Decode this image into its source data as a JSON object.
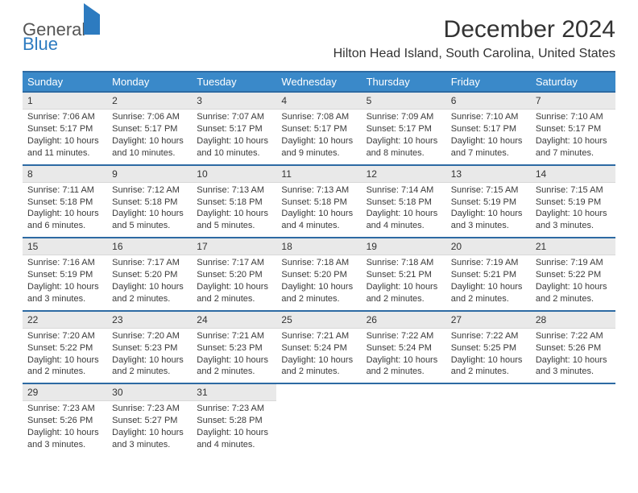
{
  "logo": {
    "word1": "General",
    "word2": "Blue"
  },
  "title": "December 2024",
  "subtitle": "Hilton Head Island, South Carolina, United States",
  "colors": {
    "header_bg": "#3a89c9",
    "header_border": "#2d6aa3",
    "daynum_bg": "#e9e9e9",
    "text": "#3a3a3a",
    "logo_blue": "#2d7bc0"
  },
  "day_headers": [
    "Sunday",
    "Monday",
    "Tuesday",
    "Wednesday",
    "Thursday",
    "Friday",
    "Saturday"
  ],
  "weeks": [
    [
      {
        "n": "1",
        "sr": "Sunrise: 7:06 AM",
        "ss": "Sunset: 5:17 PM",
        "dl": "Daylight: 10 hours and 11 minutes."
      },
      {
        "n": "2",
        "sr": "Sunrise: 7:06 AM",
        "ss": "Sunset: 5:17 PM",
        "dl": "Daylight: 10 hours and 10 minutes."
      },
      {
        "n": "3",
        "sr": "Sunrise: 7:07 AM",
        "ss": "Sunset: 5:17 PM",
        "dl": "Daylight: 10 hours and 10 minutes."
      },
      {
        "n": "4",
        "sr": "Sunrise: 7:08 AM",
        "ss": "Sunset: 5:17 PM",
        "dl": "Daylight: 10 hours and 9 minutes."
      },
      {
        "n": "5",
        "sr": "Sunrise: 7:09 AM",
        "ss": "Sunset: 5:17 PM",
        "dl": "Daylight: 10 hours and 8 minutes."
      },
      {
        "n": "6",
        "sr": "Sunrise: 7:10 AM",
        "ss": "Sunset: 5:17 PM",
        "dl": "Daylight: 10 hours and 7 minutes."
      },
      {
        "n": "7",
        "sr": "Sunrise: 7:10 AM",
        "ss": "Sunset: 5:17 PM",
        "dl": "Daylight: 10 hours and 7 minutes."
      }
    ],
    [
      {
        "n": "8",
        "sr": "Sunrise: 7:11 AM",
        "ss": "Sunset: 5:18 PM",
        "dl": "Daylight: 10 hours and 6 minutes."
      },
      {
        "n": "9",
        "sr": "Sunrise: 7:12 AM",
        "ss": "Sunset: 5:18 PM",
        "dl": "Daylight: 10 hours and 5 minutes."
      },
      {
        "n": "10",
        "sr": "Sunrise: 7:13 AM",
        "ss": "Sunset: 5:18 PM",
        "dl": "Daylight: 10 hours and 5 minutes."
      },
      {
        "n": "11",
        "sr": "Sunrise: 7:13 AM",
        "ss": "Sunset: 5:18 PM",
        "dl": "Daylight: 10 hours and 4 minutes."
      },
      {
        "n": "12",
        "sr": "Sunrise: 7:14 AM",
        "ss": "Sunset: 5:18 PM",
        "dl": "Daylight: 10 hours and 4 minutes."
      },
      {
        "n": "13",
        "sr": "Sunrise: 7:15 AM",
        "ss": "Sunset: 5:19 PM",
        "dl": "Daylight: 10 hours and 3 minutes."
      },
      {
        "n": "14",
        "sr": "Sunrise: 7:15 AM",
        "ss": "Sunset: 5:19 PM",
        "dl": "Daylight: 10 hours and 3 minutes."
      }
    ],
    [
      {
        "n": "15",
        "sr": "Sunrise: 7:16 AM",
        "ss": "Sunset: 5:19 PM",
        "dl": "Daylight: 10 hours and 3 minutes."
      },
      {
        "n": "16",
        "sr": "Sunrise: 7:17 AM",
        "ss": "Sunset: 5:20 PM",
        "dl": "Daylight: 10 hours and 2 minutes."
      },
      {
        "n": "17",
        "sr": "Sunrise: 7:17 AM",
        "ss": "Sunset: 5:20 PM",
        "dl": "Daylight: 10 hours and 2 minutes."
      },
      {
        "n": "18",
        "sr": "Sunrise: 7:18 AM",
        "ss": "Sunset: 5:20 PM",
        "dl": "Daylight: 10 hours and 2 minutes."
      },
      {
        "n": "19",
        "sr": "Sunrise: 7:18 AM",
        "ss": "Sunset: 5:21 PM",
        "dl": "Daylight: 10 hours and 2 minutes."
      },
      {
        "n": "20",
        "sr": "Sunrise: 7:19 AM",
        "ss": "Sunset: 5:21 PM",
        "dl": "Daylight: 10 hours and 2 minutes."
      },
      {
        "n": "21",
        "sr": "Sunrise: 7:19 AM",
        "ss": "Sunset: 5:22 PM",
        "dl": "Daylight: 10 hours and 2 minutes."
      }
    ],
    [
      {
        "n": "22",
        "sr": "Sunrise: 7:20 AM",
        "ss": "Sunset: 5:22 PM",
        "dl": "Daylight: 10 hours and 2 minutes."
      },
      {
        "n": "23",
        "sr": "Sunrise: 7:20 AM",
        "ss": "Sunset: 5:23 PM",
        "dl": "Daylight: 10 hours and 2 minutes."
      },
      {
        "n": "24",
        "sr": "Sunrise: 7:21 AM",
        "ss": "Sunset: 5:23 PM",
        "dl": "Daylight: 10 hours and 2 minutes."
      },
      {
        "n": "25",
        "sr": "Sunrise: 7:21 AM",
        "ss": "Sunset: 5:24 PM",
        "dl": "Daylight: 10 hours and 2 minutes."
      },
      {
        "n": "26",
        "sr": "Sunrise: 7:22 AM",
        "ss": "Sunset: 5:24 PM",
        "dl": "Daylight: 10 hours and 2 minutes."
      },
      {
        "n": "27",
        "sr": "Sunrise: 7:22 AM",
        "ss": "Sunset: 5:25 PM",
        "dl": "Daylight: 10 hours and 2 minutes."
      },
      {
        "n": "28",
        "sr": "Sunrise: 7:22 AM",
        "ss": "Sunset: 5:26 PM",
        "dl": "Daylight: 10 hours and 3 minutes."
      }
    ],
    [
      {
        "n": "29",
        "sr": "Sunrise: 7:23 AM",
        "ss": "Sunset: 5:26 PM",
        "dl": "Daylight: 10 hours and 3 minutes."
      },
      {
        "n": "30",
        "sr": "Sunrise: 7:23 AM",
        "ss": "Sunset: 5:27 PM",
        "dl": "Daylight: 10 hours and 3 minutes."
      },
      {
        "n": "31",
        "sr": "Sunrise: 7:23 AM",
        "ss": "Sunset: 5:28 PM",
        "dl": "Daylight: 10 hours and 4 minutes."
      },
      null,
      null,
      null,
      null
    ]
  ]
}
